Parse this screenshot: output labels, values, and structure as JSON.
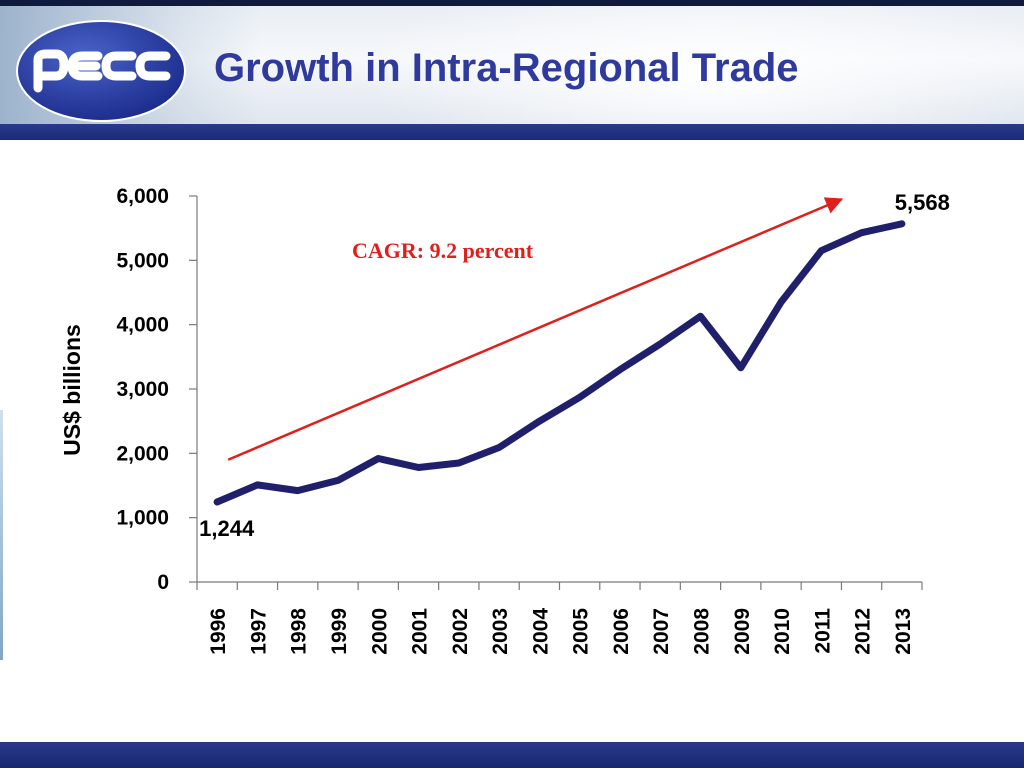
{
  "slide": {
    "title": "Growth in Intra-Regional Trade",
    "logo_text": "pecc"
  },
  "colors": {
    "title": "#2f3a9f",
    "bar": "#1b2b78",
    "line": "#1f1f6b",
    "arrow": "#e0201c"
  },
  "chart_data": {
    "type": "line",
    "title": "",
    "xlabel": "",
    "ylabel": "US$ billions",
    "x": [
      "1996",
      "1997",
      "1998",
      "1999",
      "2000",
      "2001",
      "2002",
      "2003",
      "2004",
      "2005",
      "2006",
      "2007",
      "2008",
      "2009",
      "2010",
      "2011",
      "2012",
      "2013"
    ],
    "series": [
      {
        "values": [
          1244,
          1510,
          1420,
          1580,
          1920,
          1780,
          1850,
          2090,
          2500,
          2870,
          3300,
          3700,
          4130,
          3330,
          4350,
          5150,
          5430,
          5568
        ]
      }
    ],
    "ylim": [
      0,
      6000
    ],
    "yticks": [
      0,
      1000,
      2000,
      3000,
      4000,
      5000,
      6000
    ],
    "ytick_labels": [
      "0",
      "1,000",
      "2,000",
      "3,000",
      "4,000",
      "5,000",
      "6,000"
    ],
    "grid": false,
    "legend": "none",
    "data_labels": [
      {
        "x": "1996",
        "text": "1,244"
      },
      {
        "x": "2013",
        "text": "5,568"
      }
    ],
    "annotation": {
      "text": "CAGR: 9.2 percent",
      "arrow": true
    }
  }
}
